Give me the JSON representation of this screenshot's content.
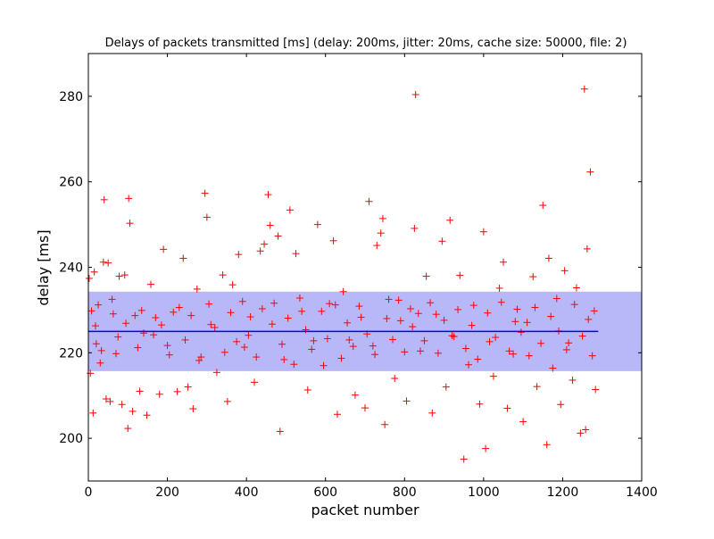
{
  "chart_data": {
    "type": "scatter",
    "title": "Delays of packets transmitted [ms] (delay: 200ms, jitter: 20ms, cache size: 50000, file: 2)",
    "xlabel": "packet number",
    "ylabel": "delay [ms]",
    "xlim": [
      0,
      1400
    ],
    "ylim": [
      190,
      290
    ],
    "x_ticks": [
      "0",
      "200",
      "400",
      "600",
      "800",
      "1000",
      "1200",
      "1400"
    ],
    "y_ticks": [
      "200",
      "220",
      "240",
      "260",
      "280"
    ],
    "grid": false,
    "legend": "none",
    "marker": "+",
    "marker_color": "#ff0000",
    "mean_line": {
      "value": 225.0,
      "x_range": [
        0,
        1290
      ],
      "color": "#0000ff"
    },
    "std_band": {
      "low": 215.7,
      "high": 234.3,
      "color": "#b8b8f8"
    },
    "series": [
      {
        "marker": "+",
        "color": "#ff0000",
        "points": [
          [
            2,
            237.4
          ],
          [
            5,
            215.2
          ],
          [
            8,
            229.8
          ],
          [
            12,
            205.9
          ],
          [
            15,
            238.9
          ],
          [
            20,
            222.1
          ],
          [
            25,
            231.2
          ],
          [
            30,
            217.6
          ],
          [
            38,
            241.2
          ],
          [
            40,
            255.8
          ],
          [
            45,
            209.2
          ],
          [
            50,
            241.0
          ],
          [
            55,
            208.6
          ],
          [
            60,
            232.5
          ],
          [
            70,
            219.8
          ],
          [
            78,
            237.9
          ],
          [
            85,
            207.9
          ],
          [
            92,
            238.2
          ],
          [
            100,
            202.3
          ],
          [
            102,
            256.1
          ],
          [
            105,
            250.3
          ],
          [
            112,
            206.3
          ],
          [
            118,
            228.7
          ],
          [
            130,
            211.0
          ],
          [
            140,
            224.6
          ],
          [
            148,
            205.4
          ],
          [
            158,
            236.0
          ],
          [
            170,
            228.2
          ],
          [
            180,
            210.3
          ],
          [
            190,
            244.2
          ],
          [
            200,
            221.7
          ],
          [
            215,
            229.5
          ],
          [
            225,
            210.9
          ],
          [
            240,
            242.1
          ],
          [
            252,
            212.0
          ],
          [
            265,
            206.9
          ],
          [
            275,
            234.9
          ],
          [
            285,
            219.0
          ],
          [
            295,
            257.3
          ],
          [
            300,
            251.7
          ],
          [
            310,
            226.6
          ],
          [
            325,
            215.4
          ],
          [
            340,
            238.2
          ],
          [
            352,
            208.6
          ],
          [
            365,
            235.9
          ],
          [
            380,
            243.0
          ],
          [
            395,
            221.3
          ],
          [
            410,
            228.4
          ],
          [
            420,
            213.1
          ],
          [
            435,
            243.8
          ],
          [
            445,
            245.4
          ],
          [
            455,
            257.0
          ],
          [
            460,
            249.8
          ],
          [
            470,
            231.6
          ],
          [
            480,
            247.3
          ],
          [
            485,
            201.6
          ],
          [
            495,
            218.4
          ],
          [
            510,
            253.4
          ],
          [
            525,
            243.2
          ],
          [
            540,
            229.7
          ],
          [
            555,
            211.3
          ],
          [
            570,
            222.8
          ],
          [
            580,
            250.0
          ],
          [
            595,
            217.0
          ],
          [
            610,
            231.5
          ],
          [
            620,
            246.2
          ],
          [
            630,
            205.6
          ],
          [
            645,
            234.3
          ],
          [
            660,
            223.0
          ],
          [
            675,
            210.1
          ],
          [
            690,
            228.3
          ],
          [
            700,
            207.1
          ],
          [
            710,
            255.4
          ],
          [
            720,
            221.6
          ],
          [
            730,
            245.1
          ],
          [
            740,
            248.0
          ],
          [
            745,
            251.4
          ],
          [
            750,
            203.2
          ],
          [
            760,
            232.5
          ],
          [
            775,
            214.0
          ],
          [
            790,
            227.5
          ],
          [
            805,
            208.7
          ],
          [
            815,
            230.3
          ],
          [
            825,
            249.1
          ],
          [
            828,
            280.4
          ],
          [
            840,
            220.4
          ],
          [
            855,
            237.9
          ],
          [
            870,
            205.9
          ],
          [
            880,
            229.0
          ],
          [
            895,
            246.1
          ],
          [
            905,
            212.0
          ],
          [
            915,
            251.0
          ],
          [
            925,
            223.8
          ],
          [
            940,
            238.1
          ],
          [
            950,
            195.1
          ],
          [
            962,
            217.2
          ],
          [
            975,
            231.1
          ],
          [
            990,
            208.0
          ],
          [
            1000,
            248.3
          ],
          [
            1005,
            197.6
          ],
          [
            1015,
            222.6
          ],
          [
            1025,
            214.5
          ],
          [
            1040,
            235.1
          ],
          [
            1050,
            241.2
          ],
          [
            1060,
            207.0
          ],
          [
            1075,
            219.7
          ],
          [
            1085,
            230.2
          ],
          [
            1100,
            203.9
          ],
          [
            1110,
            227.1
          ],
          [
            1125,
            237.8
          ],
          [
            1135,
            212.1
          ],
          [
            1150,
            254.5
          ],
          [
            1160,
            198.5
          ],
          [
            1165,
            242.1
          ],
          [
            1175,
            216.4
          ],
          [
            1185,
            232.7
          ],
          [
            1195,
            207.9
          ],
          [
            1205,
            239.2
          ],
          [
            1215,
            222.3
          ],
          [
            1225,
            213.6
          ],
          [
            1235,
            235.2
          ],
          [
            1245,
            201.2
          ],
          [
            1255,
            281.7
          ],
          [
            1258,
            202.0
          ],
          [
            1262,
            244.3
          ],
          [
            1270,
            262.3
          ],
          [
            1275,
            219.3
          ],
          [
            1280,
            229.8
          ],
          [
            1283,
            211.4
          ],
          [
            18,
            226.3
          ],
          [
            33,
            220.5
          ],
          [
            63,
            229.1
          ],
          [
            75,
            223.7
          ],
          [
            95,
            226.9
          ],
          [
            125,
            221.2
          ],
          [
            135,
            229.9
          ],
          [
            165,
            224.2
          ],
          [
            185,
            226.5
          ],
          [
            205,
            219.5
          ],
          [
            230,
            230.6
          ],
          [
            245,
            223.0
          ],
          [
            260,
            228.7
          ],
          [
            280,
            218.2
          ],
          [
            305,
            231.4
          ],
          [
            320,
            225.9
          ],
          [
            345,
            220.1
          ],
          [
            360,
            229.4
          ],
          [
            375,
            222.6
          ],
          [
            390,
            232.0
          ],
          [
            405,
            224.1
          ],
          [
            425,
            219.0
          ],
          [
            440,
            230.3
          ],
          [
            465,
            226.7
          ],
          [
            490,
            222.0
          ],
          [
            505,
            228.1
          ],
          [
            520,
            217.3
          ],
          [
            535,
            232.8
          ],
          [
            550,
            225.4
          ],
          [
            565,
            220.8
          ],
          [
            590,
            229.7
          ],
          [
            605,
            223.3
          ],
          [
            625,
            231.2
          ],
          [
            640,
            218.7
          ],
          [
            655,
            227.0
          ],
          [
            670,
            221.5
          ],
          [
            685,
            230.9
          ],
          [
            705,
            224.4
          ],
          [
            725,
            219.6
          ],
          [
            755,
            228.0
          ],
          [
            770,
            223.1
          ],
          [
            785,
            232.3
          ],
          [
            800,
            220.2
          ],
          [
            820,
            226.1
          ],
          [
            835,
            229.2
          ],
          [
            850,
            222.8
          ],
          [
            865,
            231.7
          ],
          [
            885,
            219.9
          ],
          [
            900,
            227.6
          ],
          [
            920,
            224.0
          ],
          [
            935,
            230.1
          ],
          [
            955,
            221.0
          ],
          [
            970,
            226.4
          ],
          [
            985,
            218.5
          ],
          [
            1010,
            229.3
          ],
          [
            1030,
            223.6
          ],
          [
            1045,
            231.8
          ],
          [
            1065,
            220.4
          ],
          [
            1080,
            227.3
          ],
          [
            1095,
            224.8
          ],
          [
            1115,
            219.3
          ],
          [
            1130,
            230.6
          ],
          [
            1145,
            222.2
          ],
          [
            1170,
            228.5
          ],
          [
            1190,
            225.1
          ],
          [
            1210,
            220.7
          ],
          [
            1230,
            231.3
          ],
          [
            1250,
            223.9
          ],
          [
            1265,
            227.8
          ]
        ]
      }
    ]
  }
}
